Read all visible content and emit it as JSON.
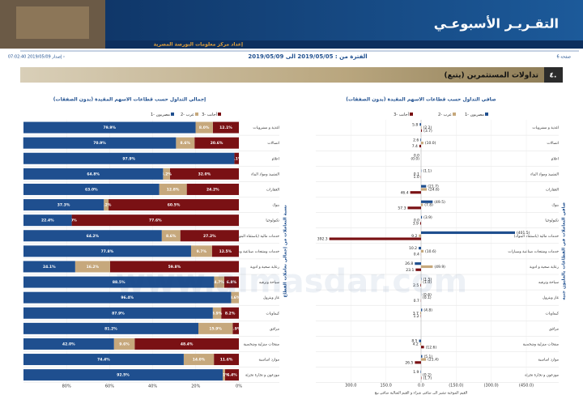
{
  "header": {
    "title": "التقـريـر الأسبوعـي",
    "subtitle": "إعداد مركز معلومات البورصة المصرية",
    "page": "صفحة 6",
    "period": "الفترة من : 2019/05/05 الى 2019/05/09",
    "issued": "إصدار 2019/05/09 07:02:40 ›"
  },
  "section": {
    "number": "٤.",
    "title": "تداولات المستثمرين (يتبع)"
  },
  "watermark": "www.almasdar.com",
  "chart_data": [
    {
      "type": "bar",
      "stacked": true,
      "x_reversed": true,
      "title": "إجمالي التداول حسب قطاعات الاسهم المقيدة (بدون الصفقات)",
      "y_label": "نسبة التعاملات من إجمالي تعاملات القطاع",
      "categories": [
        "اغذية و مشروبات",
        "اتصالات",
        "اعلام",
        "التشييد ومواد البناء",
        "العقارات",
        "بنوك",
        "تكنولوجيا",
        "خدمات مالية (باستثناء البنوك)",
        "خدمات ومنتجات صناعية وسيارات",
        "رعاية صحية و ادوية",
        "سياحة وترفيه",
        "غاز وبترول",
        "كيماويات",
        "مرافق",
        "منتجات منزلية وشخصية",
        "موارد اساسية",
        "موزعون و تجارة تجزئة"
      ],
      "series": [
        {
          "name": "مصريون -1",
          "color": "#1f4f8f",
          "values": [
            79.9,
            70.9,
            97.9,
            64.8,
            63.0,
            37.3,
            22.4,
            64.2,
            77.8,
            24.1,
            88.5,
            96.4,
            87.9,
            81.2,
            42.0,
            74.4,
            92.5
          ],
          "value_labels": [
            "79.9%",
            "70.9%",
            "97.9%",
            "64.8%",
            "63.0%",
            "37.3%",
            "22.4%",
            "64.2%",
            "77.8%",
            "24.1%",
            "88.5%",
            "96.4%",
            "87.9%",
            "81.2%",
            "42.0%",
            "74.4%",
            "92.5%"
          ]
        },
        {
          "name": "عرب -2",
          "color": "#c6a87c",
          "values": [
            8.0,
            8.6,
            0.0,
            3.2,
            12.8,
            2.2,
            0.0,
            8.6,
            9.7,
            16.2,
            4.7,
            3.6,
            3.9,
            15.9,
            9.6,
            14.0,
            1.1
          ],
          "value_labels": [
            "8.0%",
            "8.6%",
            null,
            "3.2%",
            "12.8%",
            "2.2%",
            "0.0%",
            "8.6%",
            "9.7%",
            "16.2%",
            "4.7%",
            "3.6%",
            "3.9%",
            "15.9%",
            "9.6%",
            "14.0%",
            "1.1%"
          ]
        },
        {
          "name": "أجانب -3",
          "color": "#7a1114",
          "values": [
            12.1,
            20.6,
            2.1,
            32.0,
            24.2,
            60.5,
            77.6,
            27.2,
            12.5,
            59.8,
            6.8,
            0.0,
            8.2,
            2.9,
            48.4,
            11.6,
            6.4
          ],
          "value_labels": [
            "12.1%",
            "20.6%",
            "2.1%",
            "32.0%",
            "24.2%",
            "60.5%",
            "77.6%",
            "27.2%",
            "12.5%",
            "59.8%",
            "6.8%",
            null,
            "8.2%",
            "2.9%",
            "48.4%",
            "11.6%",
            "6.4%"
          ]
        }
      ],
      "xlim": [
        0,
        100
      ],
      "xticks": [
        {
          "value": 0,
          "label": "0%"
        },
        {
          "value": 20,
          "label": "20%"
        },
        {
          "value": 40,
          "label": "40%"
        },
        {
          "value": 60,
          "label": "60%"
        },
        {
          "value": 80,
          "label": "80%"
        }
      ]
    },
    {
      "type": "bar",
      "stacked": false,
      "x_reversed": true,
      "title": "صافي التداول حسب قطاعات الاسهم المقيدة (بدون الصفقات)",
      "y_label": "صافي التعاملات في القطاعات بالمليون جنيه",
      "note": "القيم الموجبة تشير الى صافي شراء و القيم السالبة صافي بيع",
      "categories": [
        "اغذية و مشروبات",
        "اتصالات",
        "اعلام",
        "التشييد ومواد البناء",
        "العقارات",
        "بنوك",
        "تكنولوجيا",
        "خدمات مالية (باستثناء البنوك)",
        "خدمات ومنتجات صناعية وسيارات",
        "رعاية صحية و ادوية",
        "سياحة وترفيه",
        "غاز وبترول",
        "كيماويات",
        "مرافق",
        "منتجات منزلية وشخصية",
        "موارد اساسية",
        "موزعون و تجارة تجزئة"
      ],
      "series": [
        {
          "name": "مصريون -1",
          "color": "#1f4f8f",
          "values": [
            5.8,
            2.6,
            0.0,
            -1.1,
            -21.7,
            -49.5,
            -3.9,
            -401.5,
            10.2,
            26.8,
            -1.5,
            -0.6,
            -4.8,
            0.0,
            8.5,
            -5.1,
            1.9
          ],
          "value_labels": [
            "5.8",
            "2.6",
            "0.0",
            "(1.1)",
            "(21.7)",
            "(49.5)",
            "(3.9)",
            "(401.5)",
            "10.2",
            "26.8",
            "(1.5)",
            "(0.6)",
            "(4.8)",
            null,
            "8.5",
            "(5.1)",
            "1.9"
          ]
        },
        {
          "name": "عرب -2",
          "color": "#c6a87c",
          "values": [
            -2.2,
            -10.0,
            0.0,
            0.1,
            -24.6,
            -7.8,
            0.0,
            9.2,
            -10.6,
            -49.9,
            -1.0,
            -0.1,
            3.7,
            0.0,
            4.2,
            -21.4,
            -0.2
          ],
          "value_labels": [
            "(2.2)",
            "(10.0)",
            "(0.0)",
            "0.1",
            "(24.6)",
            "(7.8)",
            "0.0",
            "9.2",
            "(10.6)",
            "(49.9)",
            "(1.0)",
            "(0.1)",
            "3.7",
            null,
            "4.2",
            "(21.4)",
            "(0.2)"
          ]
        },
        {
          "name": "أجانب -3",
          "color": "#7a1114",
          "values": [
            -3.7,
            7.4,
            0.0,
            1.0,
            46.4,
            57.3,
            3.9,
            392.3,
            0.4,
            23.1,
            2.5,
            0.7,
            1.2,
            0.0,
            -12.6,
            26.5,
            -1.7
          ],
          "value_labels": [
            "(3.7)",
            "7.4",
            null,
            "1.0",
            "46.4",
            "57.3",
            "3.9",
            "392.3",
            "0.4",
            "23.1",
            "2.5",
            "0.7",
            "1.2",
            null,
            "(12.6)",
            "26.5",
            "(1.7)"
          ]
        }
      ],
      "xlim": [
        -450,
        450
      ],
      "xticks": [
        {
          "value": 300,
          "label": "300.0"
        },
        {
          "value": 150,
          "label": "150.0"
        },
        {
          "value": 0,
          "label": "0.0"
        },
        {
          "value": -150,
          "label": "(150.0)"
        },
        {
          "value": -300,
          "label": "(300.0)"
        },
        {
          "value": -450,
          "label": "(450.0)"
        }
      ]
    }
  ]
}
